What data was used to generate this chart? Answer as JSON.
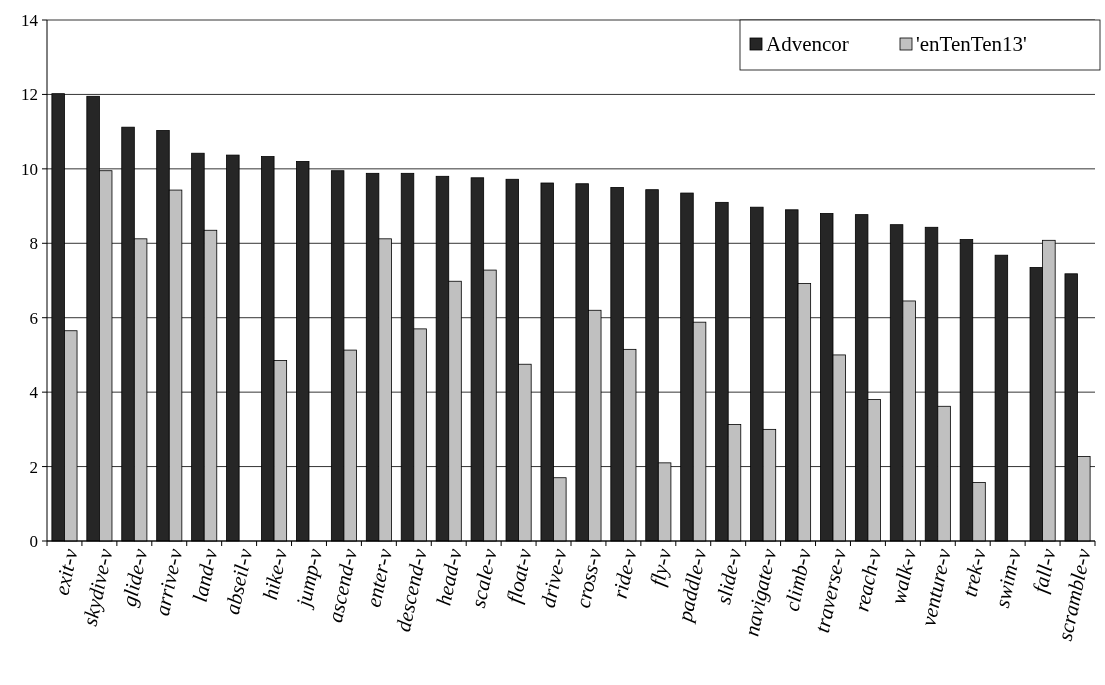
{
  "chart_data": {
    "type": "bar",
    "categories": [
      "exit-v",
      "skydive-v",
      "glide-v",
      "arrive-v",
      "land-v",
      "abseil-v",
      "hike-v",
      "jump-v",
      "ascend-v",
      "enter-v",
      "descend-v",
      "head-v",
      "scale-v",
      "float-v",
      "drive-v",
      "cross-v",
      "ride-v",
      "fly-v",
      "paddle-v",
      "slide-v",
      "navigate-v",
      "climb-v",
      "traverse-v",
      "reach-v",
      "walk-v",
      "venture-v",
      "trek-v",
      "swim-v",
      "fall-v",
      "scramble-v"
    ],
    "series": [
      {
        "name": "Advencor",
        "color": "#262626",
        "values": [
          12.02,
          11.95,
          11.12,
          11.03,
          10.42,
          10.37,
          10.33,
          10.2,
          9.95,
          9.88,
          9.88,
          9.8,
          9.76,
          9.72,
          9.62,
          9.6,
          9.5,
          9.44,
          9.35,
          9.1,
          8.97,
          8.9,
          8.8,
          8.77,
          8.5,
          8.43,
          8.1,
          7.68,
          7.35,
          7.18
        ]
      },
      {
        "name": "'enTenTen13'",
        "color": "#c0c0c0",
        "values": [
          5.65,
          9.95,
          8.12,
          9.43,
          8.35,
          null,
          4.85,
          null,
          5.13,
          8.12,
          5.7,
          6.98,
          7.28,
          4.75,
          1.7,
          6.2,
          5.15,
          2.1,
          5.88,
          3.13,
          3.0,
          6.92,
          5.0,
          3.8,
          6.45,
          3.62,
          1.57,
          null,
          8.08,
          2.27
        ]
      }
    ],
    "ylim": [
      0,
      14
    ],
    "yticks": [
      0,
      2,
      4,
      6,
      8,
      10,
      12,
      14
    ],
    "grid": "y",
    "legend": "top right"
  }
}
